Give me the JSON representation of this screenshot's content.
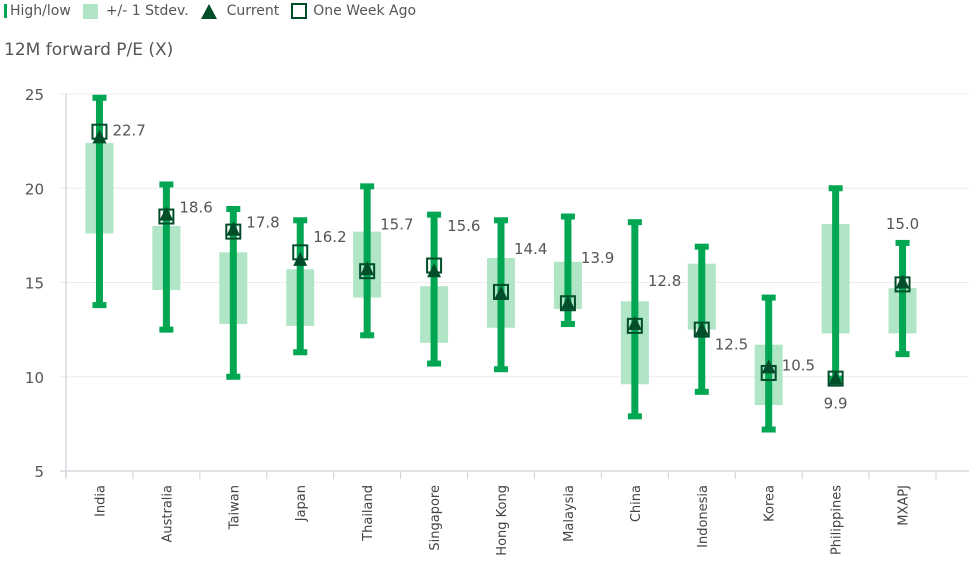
{
  "legend": {
    "high_low": "High/low",
    "stdev": "+/- 1 Stdev.",
    "current": "Current",
    "week_ago": "One Week Ago"
  },
  "colors": {
    "high_low": "#00a651",
    "stdev": "#b0e6c6",
    "marker": "#004d2a",
    "grid": "#ececec"
  },
  "chart_data": {
    "type": "range-bar",
    "title": "",
    "ylabel": "12M forward P/E (X)",
    "ylim": [
      5,
      25
    ],
    "yticks": [
      "5",
      "10",
      "15",
      "20",
      "25"
    ],
    "grid": true,
    "legend_position": "top-left",
    "categories": [
      "India",
      "Australia",
      "Taiwan",
      "Japan",
      "Thailand",
      "Singapore",
      "Hong Kong",
      "Malaysia",
      "China",
      "Indonesia",
      "Korea",
      "Philippines",
      "MXAPJ"
    ],
    "high": [
      24.8,
      20.2,
      18.9,
      18.3,
      20.1,
      18.6,
      18.3,
      18.5,
      18.2,
      16.9,
      14.2,
      20.0,
      17.1
    ],
    "low": [
      13.8,
      12.5,
      10.0,
      11.3,
      12.2,
      10.7,
      10.4,
      12.8,
      7.9,
      9.2,
      7.2,
      9.9,
      11.2
    ],
    "stdev_upper": [
      22.4,
      18.0,
      16.6,
      15.7,
      17.7,
      14.8,
      16.3,
      16.1,
      14.0,
      16.0,
      11.7,
      18.1,
      14.7
    ],
    "stdev_lower": [
      17.6,
      14.6,
      12.8,
      12.7,
      14.2,
      11.8,
      12.6,
      13.6,
      9.6,
      12.5,
      8.5,
      12.3,
      12.3
    ],
    "current": [
      22.7,
      18.6,
      17.8,
      16.2,
      15.7,
      15.6,
      14.4,
      13.9,
      12.8,
      12.5,
      10.5,
      9.9,
      15.0
    ],
    "week_ago": [
      23.0,
      18.5,
      17.7,
      16.6,
      15.6,
      15.9,
      14.5,
      13.9,
      12.7,
      12.5,
      10.2,
      9.9,
      14.9
    ],
    "labels": [
      "22.7",
      "18.6",
      "17.8",
      "16.2",
      "15.7",
      "15.6",
      "14.4",
      "13.9",
      "12.8",
      "12.5",
      "10.5",
      "9.9",
      "15.0"
    ]
  }
}
